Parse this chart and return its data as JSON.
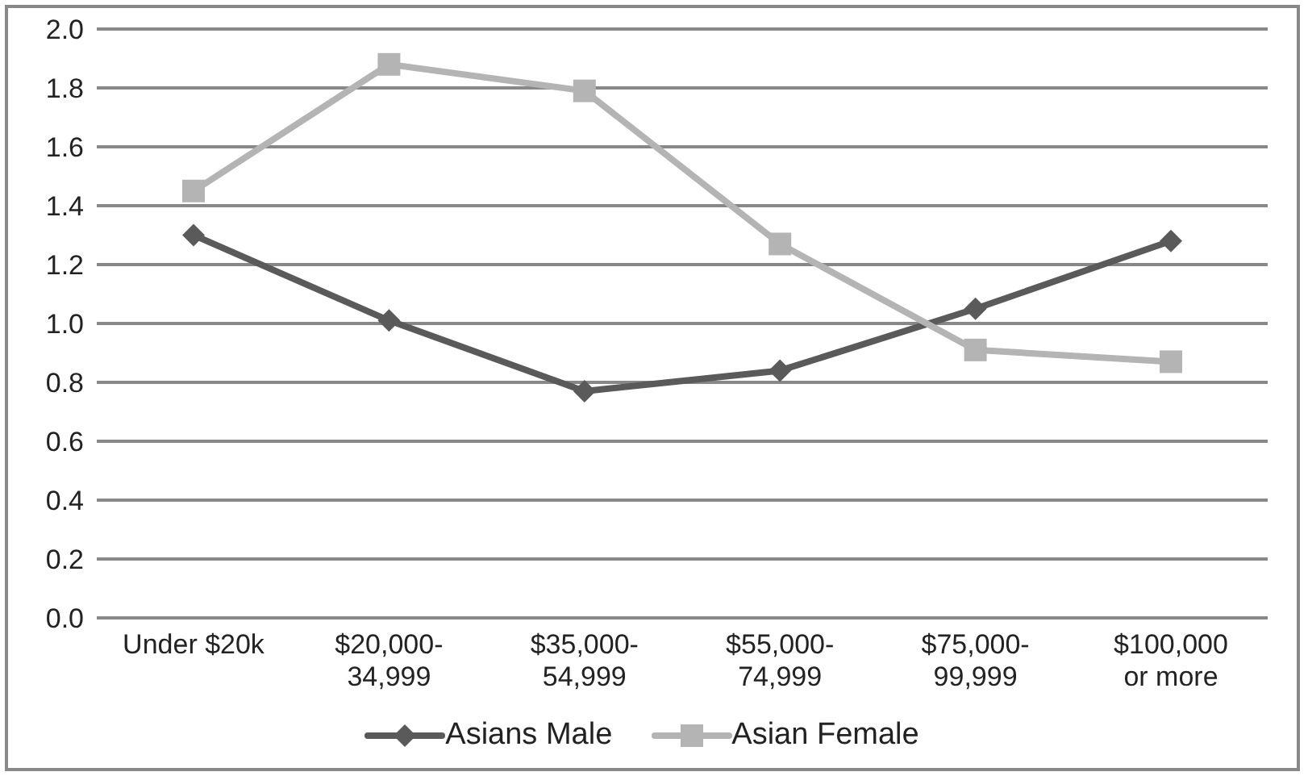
{
  "chart_data": {
    "type": "line",
    "categories": [
      "Under $20k",
      "$20,000-34,999",
      "$35,000-54,999",
      "$55,000-74,999",
      "$75,000-99,999",
      "$100,000 or more"
    ],
    "series": [
      {
        "name": "Asians Male",
        "color": "#5a5a5a",
        "marker": "diamond",
        "values": [
          1.3,
          1.01,
          0.77,
          0.84,
          1.05,
          1.28
        ]
      },
      {
        "name": "Asian Female",
        "color": "#b4b4b4",
        "marker": "square",
        "values": [
          1.45,
          1.88,
          1.79,
          1.27,
          0.91,
          0.87
        ]
      }
    ],
    "ylim": [
      0,
      2
    ],
    "yticks": [
      {
        "value": 0,
        "label": "0.0"
      },
      0.2,
      0.4,
      0.6,
      0.8,
      {
        "value": 1,
        "label": "1.0"
      },
      1.2,
      1.4,
      1.6,
      1.8,
      {
        "value": 2,
        "label": "2.0"
      }
    ],
    "grid": "y",
    "legend": "bottom"
  }
}
